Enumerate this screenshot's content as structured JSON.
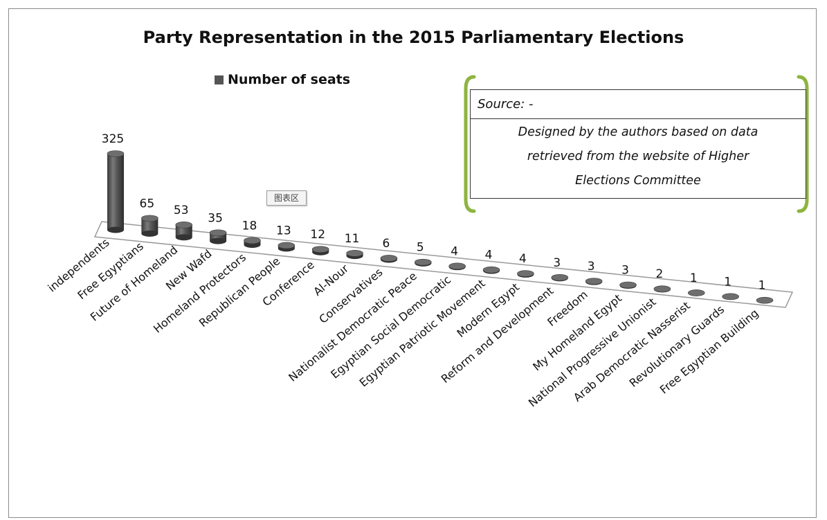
{
  "chart_data": {
    "type": "bar",
    "title": "Party Representation in the 2015 Parliamentary Elections",
    "categories": [
      "independents",
      "Free Egyptians",
      "Future of Homeland",
      "New Wafd",
      "Homeland Protectors",
      "Republican People",
      "Conference",
      "Al-Nour",
      "Conservatives",
      "Nationalist Democratic Peace",
      "Egyptian Social Democratic",
      "Egyptian Patriotic Movement",
      "Modern Egypt",
      "Reform and Development",
      "Freedom",
      "My Homeland Egypt",
      "National Progressive Unionist",
      "Arab Democratic Nasserist",
      "Revolutionary Guards",
      "Free Egyptian Building"
    ],
    "series": [
      {
        "name": "Number of seats",
        "values": [
          325,
          65,
          53,
          35,
          18,
          13,
          12,
          11,
          6,
          5,
          4,
          4,
          4,
          3,
          3,
          3,
          2,
          1,
          1,
          1
        ]
      }
    ],
    "legend_position": "top-left",
    "grid": false,
    "bar_color": "#555555"
  },
  "source_box": {
    "heading": "Source: -",
    "lines": [
      "Designed by the authors based on data",
      "retrieved from the website of Higher",
      "Elections Committee"
    ]
  },
  "chart_area_tag": "图表区",
  "colors": {
    "bracket": "#8db53f",
    "bar": "#555555"
  }
}
